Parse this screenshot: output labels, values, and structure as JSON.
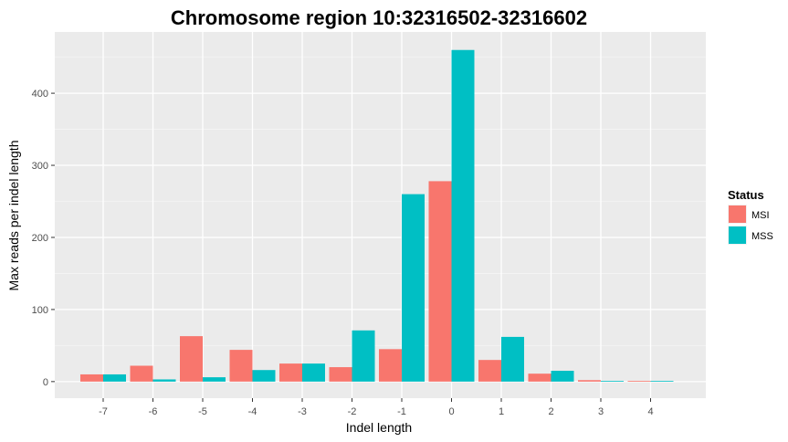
{
  "chart_data": {
    "type": "bar",
    "title": "Chromosome region 10:32316502-32316602",
    "xlabel": "Indel length",
    "ylabel": "Max reads per indel length",
    "categories": [
      "-7",
      "-6",
      "-5",
      "-4",
      "-3",
      "-2",
      "-1",
      "0",
      "1",
      "2",
      "3",
      "4"
    ],
    "series": [
      {
        "name": "MSI",
        "color": "#F8766D",
        "values": [
          10,
          22,
          63,
          44,
          25,
          20,
          45,
          278,
          30,
          11,
          2,
          1
        ]
      },
      {
        "name": "MSS",
        "color": "#00BFC4",
        "values": [
          10,
          3,
          6,
          16,
          25,
          71,
          260,
          460,
          62,
          15,
          1,
          1
        ]
      }
    ],
    "yticks": [
      0,
      100,
      200,
      300,
      400
    ],
    "ylim": [
      -23,
      485
    ],
    "grid": true,
    "legend": {
      "title": "Status",
      "position": "right"
    }
  }
}
